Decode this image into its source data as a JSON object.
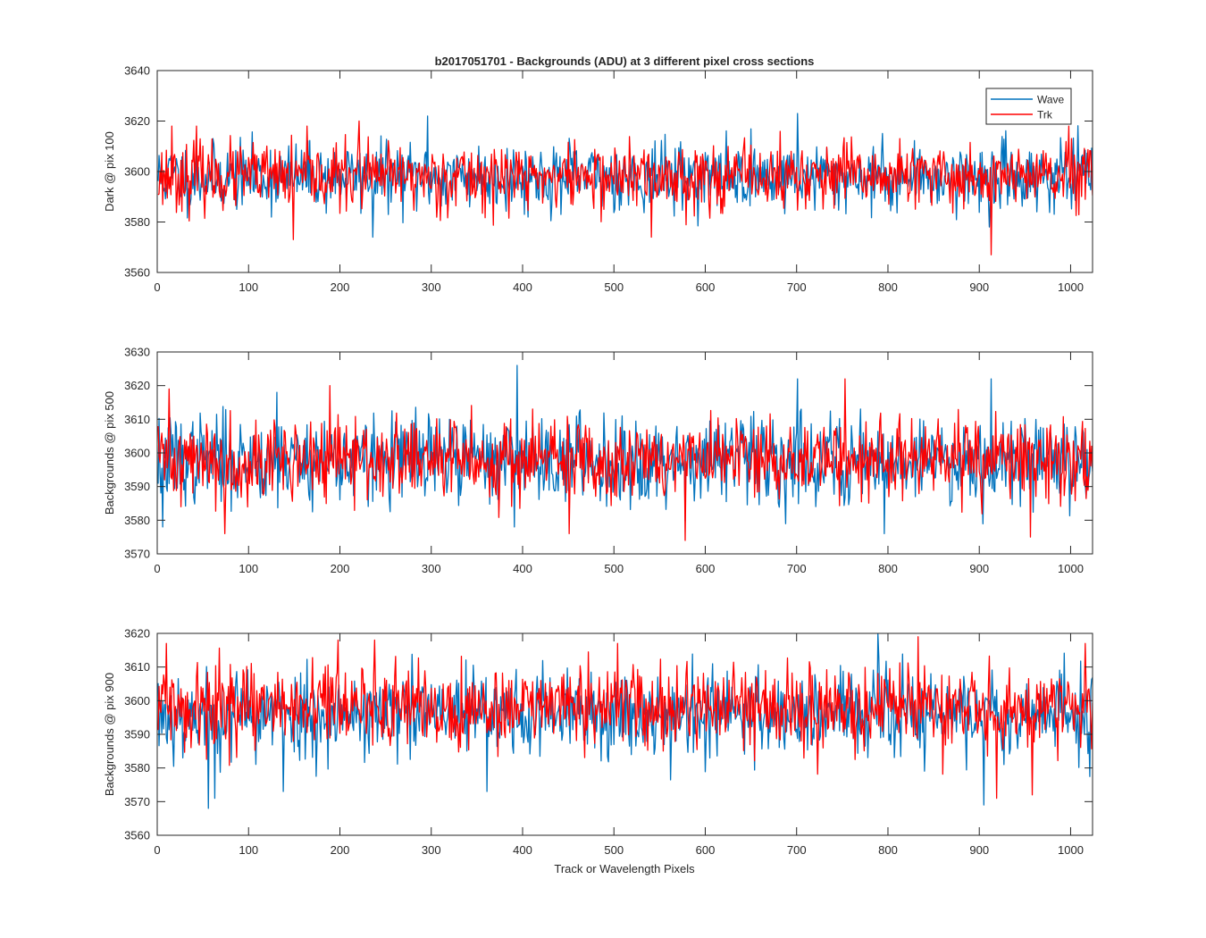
{
  "figure": {
    "title": "b2017051701 - Backgrounds (ADU) at 3 different pixel cross sections",
    "xlabel": "Track or Wavelength Pixels"
  },
  "legend": {
    "location": "top-right",
    "entries": [
      {
        "label": "Wave",
        "color": "#0072BD"
      },
      {
        "label": "Trk",
        "color": "#FF0000"
      }
    ]
  },
  "chart_data": [
    {
      "type": "line",
      "title": "b2017051701 - Backgrounds (ADU) at 3 different pixel cross sections",
      "xlabel": "",
      "ylabel": "Dark @ pix 100",
      "xlim": [
        0,
        1024
      ],
      "ylim": [
        3560,
        3640
      ],
      "xticks": [
        0,
        100,
        200,
        300,
        400,
        500,
        600,
        700,
        800,
        900,
        1000
      ],
      "yticks": [
        3560,
        3580,
        3600,
        3620,
        3640
      ],
      "n_points": 1024,
      "series": [
        {
          "name": "Wave",
          "color": "#0072BD",
          "mean": 3598,
          "std": 6.5,
          "min": 3574,
          "max": 3623,
          "seed": 11,
          "spikes": [
            [
              295,
              3622
            ],
            [
              700,
              3623
            ],
            [
              235,
              3574
            ],
            [
              910,
              3578
            ]
          ]
        },
        {
          "name": "Trk",
          "color": "#FF0000",
          "mean": 3598,
          "std": 6.5,
          "min": 3567,
          "max": 3620,
          "seed": 23,
          "spikes": [
            [
              15,
              3618
            ],
            [
              42,
              3618
            ],
            [
              220,
              3620
            ],
            [
              148,
              3573
            ],
            [
              540,
              3574
            ],
            [
              912,
              3567
            ]
          ]
        }
      ]
    },
    {
      "type": "line",
      "xlabel": "",
      "ylabel": "Backgrounds @ pix 500",
      "xlim": [
        0,
        1024
      ],
      "ylim": [
        3570,
        3630
      ],
      "xticks": [
        0,
        100,
        200,
        300,
        400,
        500,
        600,
        700,
        800,
        900,
        1000
      ],
      "yticks": [
        3570,
        3580,
        3590,
        3600,
        3610,
        3620,
        3630
      ],
      "n_points": 1024,
      "series": [
        {
          "name": "Wave",
          "color": "#0072BD",
          "mean": 3598,
          "std": 6.5,
          "min": 3576,
          "max": 3626,
          "seed": 37,
          "spikes": [
            [
              393,
              3626
            ],
            [
              130,
              3618
            ],
            [
              700,
              3622
            ],
            [
              912,
              3622
            ],
            [
              5,
              3578
            ],
            [
              795,
              3576
            ]
          ]
        },
        {
          "name": "Trk",
          "color": "#FF0000",
          "mean": 3598,
          "std": 6.0,
          "min": 3574,
          "max": 3622,
          "seed": 41,
          "spikes": [
            [
              12,
              3619
            ],
            [
              188,
              3620
            ],
            [
              752,
              3622
            ],
            [
              73,
              3576
            ],
            [
              450,
              3576
            ],
            [
              577,
              3574
            ],
            [
              955,
              3575
            ]
          ]
        }
      ]
    },
    {
      "type": "line",
      "xlabel": "Track or Wavelength Pixels",
      "ylabel": "Backgrounds @ pix 900",
      "xlim": [
        0,
        1024
      ],
      "ylim": [
        3560,
        3620
      ],
      "xticks": [
        0,
        100,
        200,
        300,
        400,
        500,
        600,
        700,
        800,
        900,
        1000
      ],
      "yticks": [
        3560,
        3570,
        3580,
        3590,
        3600,
        3610,
        3620
      ],
      "n_points": 1024,
      "series": [
        {
          "name": "Wave",
          "color": "#0072BD",
          "mean": 3596,
          "std": 6.5,
          "min": 3568,
          "max": 3620,
          "seed": 53,
          "spikes": [
            [
              55,
              3568
            ],
            [
              62,
              3571
            ],
            [
              904,
              3569
            ],
            [
              788,
              3620
            ],
            [
              137,
              3573
            ],
            [
              360,
              3573
            ]
          ]
        },
        {
          "name": "Trk",
          "color": "#FF0000",
          "mean": 3598,
          "std": 6.0,
          "min": 3571,
          "max": 3619,
          "seed": 59,
          "spikes": [
            [
              197,
              3618
            ],
            [
              237,
              3618
            ],
            [
              832,
              3619
            ],
            [
              1015,
              3617
            ],
            [
              918,
              3571
            ],
            [
              957,
              3572
            ]
          ]
        }
      ]
    }
  ]
}
